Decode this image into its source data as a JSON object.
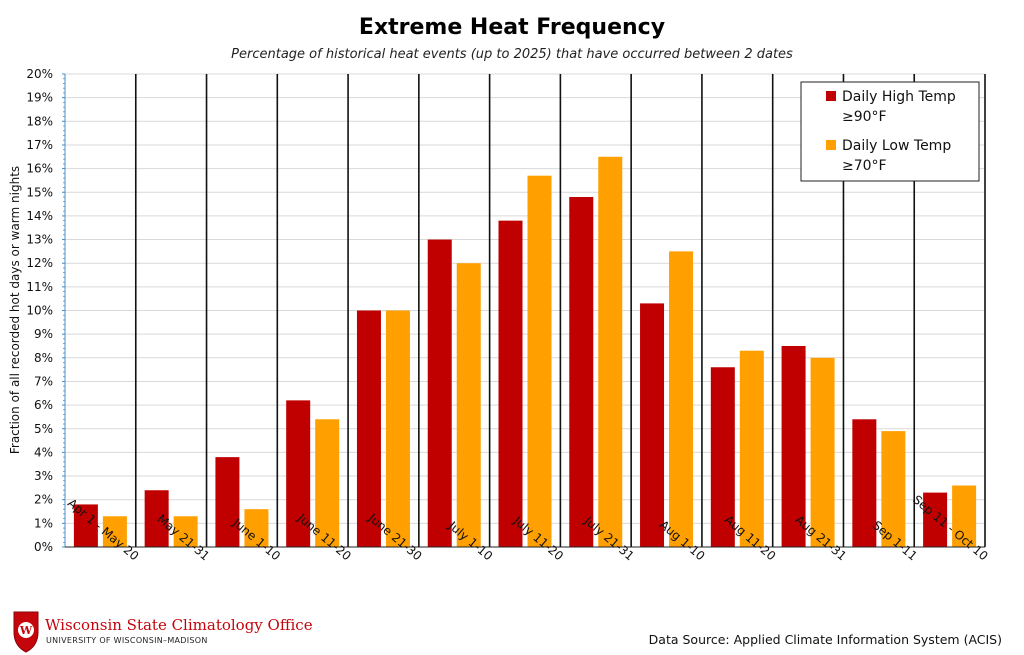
{
  "chart_data": {
    "type": "bar",
    "title": "Extreme Heat Frequency",
    "subtitle": "Percentage of historical heat events (up to 2025) that have occurred between 2 dates",
    "xlabel": "",
    "ylabel": "Fraction of all recorded hot days or warm nights",
    "ylim": [
      0,
      20
    ],
    "y_ticks": [
      "0%",
      "1%",
      "2%",
      "3%",
      "4%",
      "5%",
      "6%",
      "7%",
      "8%",
      "9%",
      "10%",
      "11%",
      "12%",
      "13%",
      "14%",
      "15%",
      "16%",
      "17%",
      "18%",
      "19%",
      "20%"
    ],
    "categories": [
      "Apr 1 - May 20",
      "May 21-31",
      "June 1-10",
      "June 11-20",
      "June 21-30",
      "July 1-10",
      "July 11-20",
      "July 21-31",
      "Aug 1-10",
      "Aug 11-20",
      "Aug 21-31",
      "Sep 1-11",
      "Sep 11 - Oct 10"
    ],
    "series": [
      {
        "name": "Daily High Temp ≥90°F",
        "legend_lines": [
          "Daily High Temp",
          "≥90°F"
        ],
        "color": "#c00000",
        "values": [
          1.8,
          2.4,
          3.8,
          6.2,
          10.0,
          13.0,
          13.8,
          14.8,
          10.3,
          7.6,
          8.5,
          5.4,
          2.3
        ]
      },
      {
        "name": "Daily Low Temp ≥70°F",
        "legend_lines": [
          "Daily Low Temp",
          "≥70°F"
        ],
        "color": "#ffa000",
        "values": [
          1.3,
          1.3,
          1.6,
          5.4,
          10.0,
          12.0,
          15.7,
          16.5,
          12.5,
          8.3,
          8.0,
          4.9,
          2.6
        ]
      }
    ],
    "grid": true,
    "legend": "top-right"
  },
  "footer": {
    "source": "Data Source: Applied Climate Information System (ACIS)",
    "logo_name": "Wisconsin State Climatology Office",
    "logo_sub": "UNIVERSITY OF WISCONSIN–MADISON",
    "logo_mark": "W"
  }
}
